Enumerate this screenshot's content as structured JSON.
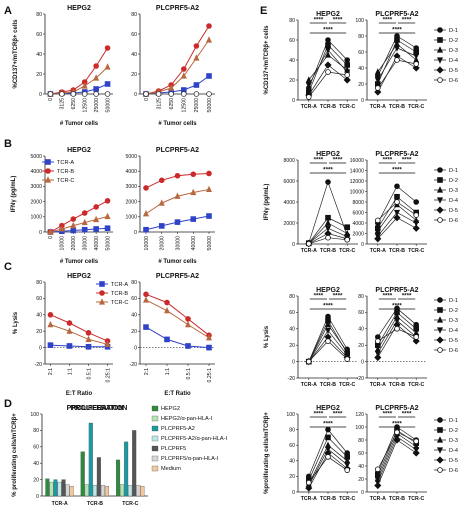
{
  "figure": {
    "panel_labels": [
      "A",
      "B",
      "C",
      "D",
      "E"
    ],
    "left_legend": [
      "TCR-A",
      "TCR-B",
      "TCR-C"
    ],
    "series_colors": {
      "TCR-A": "#2f43c8",
      "TCR-B": "#cc2a2a",
      "TCR-C": "#b8683e"
    },
    "donor_legend": [
      "D-1",
      "D-2",
      "D-3",
      "D-4",
      "D-5",
      "D-6"
    ],
    "sig_stars": "****",
    "proliferation_title": "PROLIFERATION",
    "proliferation_legend": [
      "HEPG2",
      "HEPG2/α-pan-HLA-I",
      "PLCPRF5-A2",
      "PLCPRF5-A2/α-pan-HLA-I",
      "PLCPRF5",
      "PLCPRF5/α-pan-HLA-I",
      "Medium"
    ]
  },
  "chart_data": [
    {
      "id": "A1",
      "type": "line",
      "title": "HEPG2",
      "ylabel": "%CD137+/mTCRβ+ cells",
      "xlabel": "# Tumor cells",
      "categories": [
        "0",
        "3125",
        "6250",
        "12500",
        "25000",
        "50000"
      ],
      "ylim": [
        0,
        80
      ],
      "yticks": [
        0,
        20,
        40,
        60,
        80
      ],
      "series": [
        {
          "name": "TCR-A",
          "values": [
            0,
            1,
            1,
            2,
            5,
            10
          ]
        },
        {
          "name": "TCR-B",
          "values": [
            0,
            2,
            4,
            12,
            28,
            46
          ]
        },
        {
          "name": "TCR-C",
          "values": [
            0,
            1,
            2,
            8,
            16,
            27
          ]
        },
        {
          "values": [
            0,
            0,
            0,
            0,
            0,
            0
          ]
        }
      ]
    },
    {
      "id": "A2",
      "type": "line",
      "title": "PLCPRF5-A2",
      "xlabel": "# Tumor cells",
      "categories": [
        "0",
        "3125",
        "6250",
        "12500",
        "25000",
        "50000"
      ],
      "ylim": [
        0,
        80
      ],
      "yticks": [
        0,
        20,
        40,
        60,
        80
      ],
      "series": [
        {
          "name": "TCR-A",
          "values": [
            0,
            1,
            2,
            4,
            9,
            18
          ]
        },
        {
          "name": "TCR-B",
          "values": [
            0,
            3,
            9,
            25,
            48,
            68
          ]
        },
        {
          "name": "TCR-C",
          "values": [
            0,
            2,
            6,
            18,
            36,
            54
          ]
        },
        {
          "values": [
            0,
            0,
            0,
            0,
            0,
            0
          ]
        }
      ]
    },
    {
      "id": "B1",
      "type": "line",
      "title": "HEPG2",
      "ylabel": "IFNγ (pg/mL)",
      "xlabel": "# Tumor cells",
      "categories": [
        "0",
        "10000",
        "20000",
        "30000",
        "40000",
        "50000"
      ],
      "ylim": [
        0,
        5000
      ],
      "yticks": [
        0,
        1000,
        2000,
        3000,
        4000,
        5000
      ],
      "series": [
        {
          "name": "TCR-A",
          "values": [
            0,
            50,
            100,
            150,
            200,
            250
          ]
        },
        {
          "name": "TCR-B",
          "values": [
            0,
            420,
            850,
            1250,
            1650,
            2050
          ]
        },
        {
          "name": "TCR-C",
          "values": [
            0,
            200,
            420,
            620,
            820,
            1020
          ]
        }
      ]
    },
    {
      "id": "B2",
      "type": "line",
      "title": "PLCPRF5-A2",
      "xlabel": "# Tumor cells",
      "categories": [
        "10000",
        "20000",
        "30000",
        "40000",
        "50000"
      ],
      "ylim": [
        0,
        5000
      ],
      "yticks": [
        0,
        1000,
        2000,
        3000,
        4000,
        5000
      ],
      "series": [
        {
          "name": "TCR-A",
          "values": [
            150,
            400,
            650,
            850,
            1050
          ]
        },
        {
          "name": "TCR-B",
          "values": [
            2900,
            3400,
            3700,
            3800,
            3850
          ]
        },
        {
          "name": "TCR-C",
          "values": [
            1200,
            1900,
            2350,
            2600,
            2800
          ]
        }
      ]
    },
    {
      "id": "C1",
      "type": "line",
      "title": "HEPG2",
      "ylabel": "% Lysis",
      "xlabel": "E:T Ratio",
      "categories": [
        "2:1",
        "1:1",
        "0.5:1",
        "0.25:1"
      ],
      "ylim": [
        -20,
        80
      ],
      "yticks": [
        -20,
        0,
        20,
        40,
        60,
        80
      ],
      "series": [
        {
          "name": "TCR-A",
          "values": [
            3,
            2,
            1,
            1
          ]
        },
        {
          "name": "TCR-B",
          "values": [
            40,
            30,
            18,
            8
          ]
        },
        {
          "name": "TCR-C",
          "values": [
            28,
            20,
            10,
            4
          ]
        }
      ]
    },
    {
      "id": "C2",
      "type": "line",
      "title": "PLCPRF5-A2",
      "xlabel": "E:T Ratio",
      "categories": [
        "2:1",
        "1:1",
        "0.5:1",
        "0.25:1"
      ],
      "ylim": [
        -20,
        80
      ],
      "yticks": [
        -20,
        0,
        20,
        40,
        60,
        80
      ],
      "series": [
        {
          "name": "TCR-A",
          "values": [
            25,
            10,
            2,
            0
          ]
        },
        {
          "name": "TCR-B",
          "values": [
            65,
            55,
            35,
            15
          ]
        },
        {
          "name": "TCR-C",
          "values": [
            58,
            45,
            28,
            12
          ]
        }
      ]
    },
    {
      "id": "D",
      "type": "bar",
      "title": "PROLIFERATION",
      "ylabel": "% proliferating cells/mTCRβ+",
      "categories": [
        "TCR-A",
        "TCR-B",
        "TCR-C"
      ],
      "ylim": [
        0,
        100
      ],
      "yticks": [
        0,
        20,
        40,
        60,
        80,
        100
      ],
      "series": [
        {
          "name": "HEPG2",
          "values": [
            21,
            54,
            44
          ]
        },
        {
          "name": "HEPG2/α-pan-HLA-I",
          "values": [
            17,
            14,
            14
          ]
        },
        {
          "name": "PLCPRF5-A2",
          "values": [
            20,
            89,
            66
          ]
        },
        {
          "name": "PLCPRF5-A2/α-pan-HLA-I",
          "values": [
            17,
            13,
            13
          ]
        },
        {
          "name": "PLCPRF5",
          "values": [
            20,
            47,
            80
          ]
        },
        {
          "name": "PLCPRF5/α-pan-HLA-I",
          "values": [
            14,
            13,
            13
          ]
        },
        {
          "name": "Medium",
          "values": [
            12,
            12,
            12
          ]
        }
      ]
    },
    {
      "id": "E1",
      "type": "line",
      "title": "HEPG2",
      "ylabel": "%CD137+/mTCRβ+ cells",
      "categories": [
        "TCR-A",
        "TCR-B",
        "TCR-C"
      ],
      "ylim": [
        0,
        80
      ],
      "yticks": [
        0,
        20,
        40,
        60,
        80
      ],
      "series": [
        {
          "name": "D-1",
          "values": [
            12,
            60,
            40
          ]
        },
        {
          "name": "D-2",
          "values": [
            8,
            55,
            35
          ]
        },
        {
          "name": "D-3",
          "values": [
            20,
            45,
            30
          ]
        },
        {
          "name": "D-4",
          "values": [
            15,
            50,
            28
          ]
        },
        {
          "name": "D-5",
          "values": [
            5,
            35,
            20
          ]
        },
        {
          "name": "D-6",
          "values": [
            3,
            28,
            25
          ]
        }
      ]
    },
    {
      "id": "E2",
      "type": "line",
      "title": "PLCPRF5-A2",
      "categories": [
        "TCR-A",
        "TCR-B",
        "TCR-C"
      ],
      "ylim": [
        0,
        100
      ],
      "yticks": [
        0,
        20,
        40,
        60,
        80,
        100
      ],
      "series": [
        {
          "name": "D-1",
          "values": [
            30,
            80,
            65
          ]
        },
        {
          "name": "D-2",
          "values": [
            20,
            75,
            60
          ]
        },
        {
          "name": "D-3",
          "values": [
            35,
            70,
            50
          ]
        },
        {
          "name": "D-4",
          "values": [
            25,
            65,
            55
          ]
        },
        {
          "name": "D-5",
          "values": [
            10,
            55,
            40
          ]
        },
        {
          "name": "D-6",
          "values": [
            15,
            50,
            45
          ]
        }
      ]
    },
    {
      "id": "E3",
      "type": "line",
      "title": "HEPG2",
      "ylabel": "IFNγ (pg/mL)",
      "categories": [
        "TCR-A",
        "TCR-B",
        "TCR-C"
      ],
      "ylim": [
        0,
        8000
      ],
      "yticks": [
        0,
        2000,
        4000,
        6000,
        8000
      ],
      "series": [
        {
          "name": "D-1",
          "values": [
            100,
            5900,
            800
          ]
        },
        {
          "name": "D-2",
          "values": [
            80,
            2500,
            1600
          ]
        },
        {
          "name": "D-3",
          "values": [
            50,
            2000,
            1000
          ]
        },
        {
          "name": "D-4",
          "values": [
            60,
            1500,
            700
          ]
        },
        {
          "name": "D-5",
          "values": [
            30,
            1000,
            500
          ]
        },
        {
          "name": "D-6",
          "values": [
            20,
            600,
            400
          ]
        }
      ]
    },
    {
      "id": "E4",
      "type": "line",
      "title": "PLCPRF5-A2",
      "categories": [
        "TCR-A",
        "TCR-B",
        "TCR-C"
      ],
      "ylim": [
        0,
        16000
      ],
      "yticks": [
        0,
        2000,
        4000,
        6000,
        8000,
        10000,
        12000,
        14000,
        16000
      ],
      "series": [
        {
          "name": "D-1",
          "values": [
            4000,
            11000,
            8000
          ]
        },
        {
          "name": "D-2",
          "values": [
            3000,
            9000,
            6000
          ]
        },
        {
          "name": "D-3",
          "values": [
            2500,
            7500,
            4500
          ]
        },
        {
          "name": "D-4",
          "values": [
            1500,
            6000,
            4000
          ]
        },
        {
          "name": "D-5",
          "values": [
            1000,
            5000,
            3000
          ]
        },
        {
          "name": "D-6",
          "values": [
            4500,
            8000,
            5500
          ]
        }
      ]
    },
    {
      "id": "E5",
      "type": "line",
      "title": "HEPG2",
      "ylabel": "% Lysis",
      "categories": [
        "TCR-A",
        "TCR-B",
        "TCR-C"
      ],
      "ylim": [
        -20,
        80
      ],
      "yticks": [
        -20,
        0,
        20,
        40,
        60,
        80
      ],
      "series": [
        {
          "name": "D-1",
          "values": [
            0,
            55,
            15
          ]
        },
        {
          "name": "D-2",
          "values": [
            0,
            50,
            10
          ]
        },
        {
          "name": "D-3",
          "values": [
            0,
            45,
            12
          ]
        },
        {
          "name": "D-4",
          "values": [
            0,
            38,
            8
          ]
        },
        {
          "name": "D-5",
          "values": [
            0,
            30,
            5
          ]
        },
        {
          "name": "D-6",
          "values": [
            0,
            25,
            3
          ]
        }
      ]
    },
    {
      "id": "E6",
      "type": "line",
      "title": "PLCPRF5-A2",
      "categories": [
        "TCR-A",
        "TCR-B",
        "TCR-C"
      ],
      "ylim": [
        -20,
        80
      ],
      "yticks": [
        -20,
        0,
        20,
        40,
        60,
        80
      ],
      "series": [
        {
          "name": "D-1",
          "values": [
            30,
            65,
            45
          ]
        },
        {
          "name": "D-2",
          "values": [
            20,
            60,
            40
          ]
        },
        {
          "name": "D-3",
          "values": [
            15,
            55,
            35
          ]
        },
        {
          "name": "D-4",
          "values": [
            10,
            50,
            30
          ]
        },
        {
          "name": "D-5",
          "values": [
            5,
            45,
            25
          ]
        },
        {
          "name": "D-6",
          "values": [
            25,
            40,
            30
          ]
        }
      ]
    },
    {
      "id": "E7",
      "type": "line",
      "title": "HEPG2",
      "ylabel": "%proliferating cells/mTCRβ+",
      "categories": [
        "TCR-A",
        "TCR-B",
        "TCR-C"
      ],
      "ylim": [
        0,
        100
      ],
      "yticks": [
        0,
        20,
        40,
        60,
        80,
        100
      ],
      "series": [
        {
          "name": "D-1",
          "values": [
            20,
            80,
            50
          ]
        },
        {
          "name": "D-2",
          "values": [
            15,
            70,
            45
          ]
        },
        {
          "name": "D-3",
          "values": [
            10,
            60,
            40
          ]
        },
        {
          "name": "D-4",
          "values": [
            8,
            55,
            35
          ]
        },
        {
          "name": "D-5",
          "values": [
            5,
            50,
            30
          ]
        },
        {
          "name": "D-6",
          "values": [
            12,
            45,
            28
          ]
        }
      ]
    },
    {
      "id": "E8",
      "type": "line",
      "title": "PLCPRF5-A2",
      "categories": [
        "TCR-A",
        "TCR-B",
        "TCR-C"
      ],
      "ylim": [
        0,
        120
      ],
      "yticks": [
        0,
        20,
        40,
        60,
        80,
        100,
        120
      ],
      "series": [
        {
          "name": "D-1",
          "values": [
            30,
            100,
            80
          ]
        },
        {
          "name": "D-2",
          "values": [
            25,
            95,
            75
          ]
        },
        {
          "name": "D-3",
          "values": [
            20,
            90,
            70
          ]
        },
        {
          "name": "D-4",
          "values": [
            15,
            85,
            65
          ]
        },
        {
          "name": "D-5",
          "values": [
            10,
            80,
            60
          ]
        },
        {
          "name": "D-6",
          "values": [
            35,
            92,
            78
          ]
        }
      ]
    }
  ]
}
